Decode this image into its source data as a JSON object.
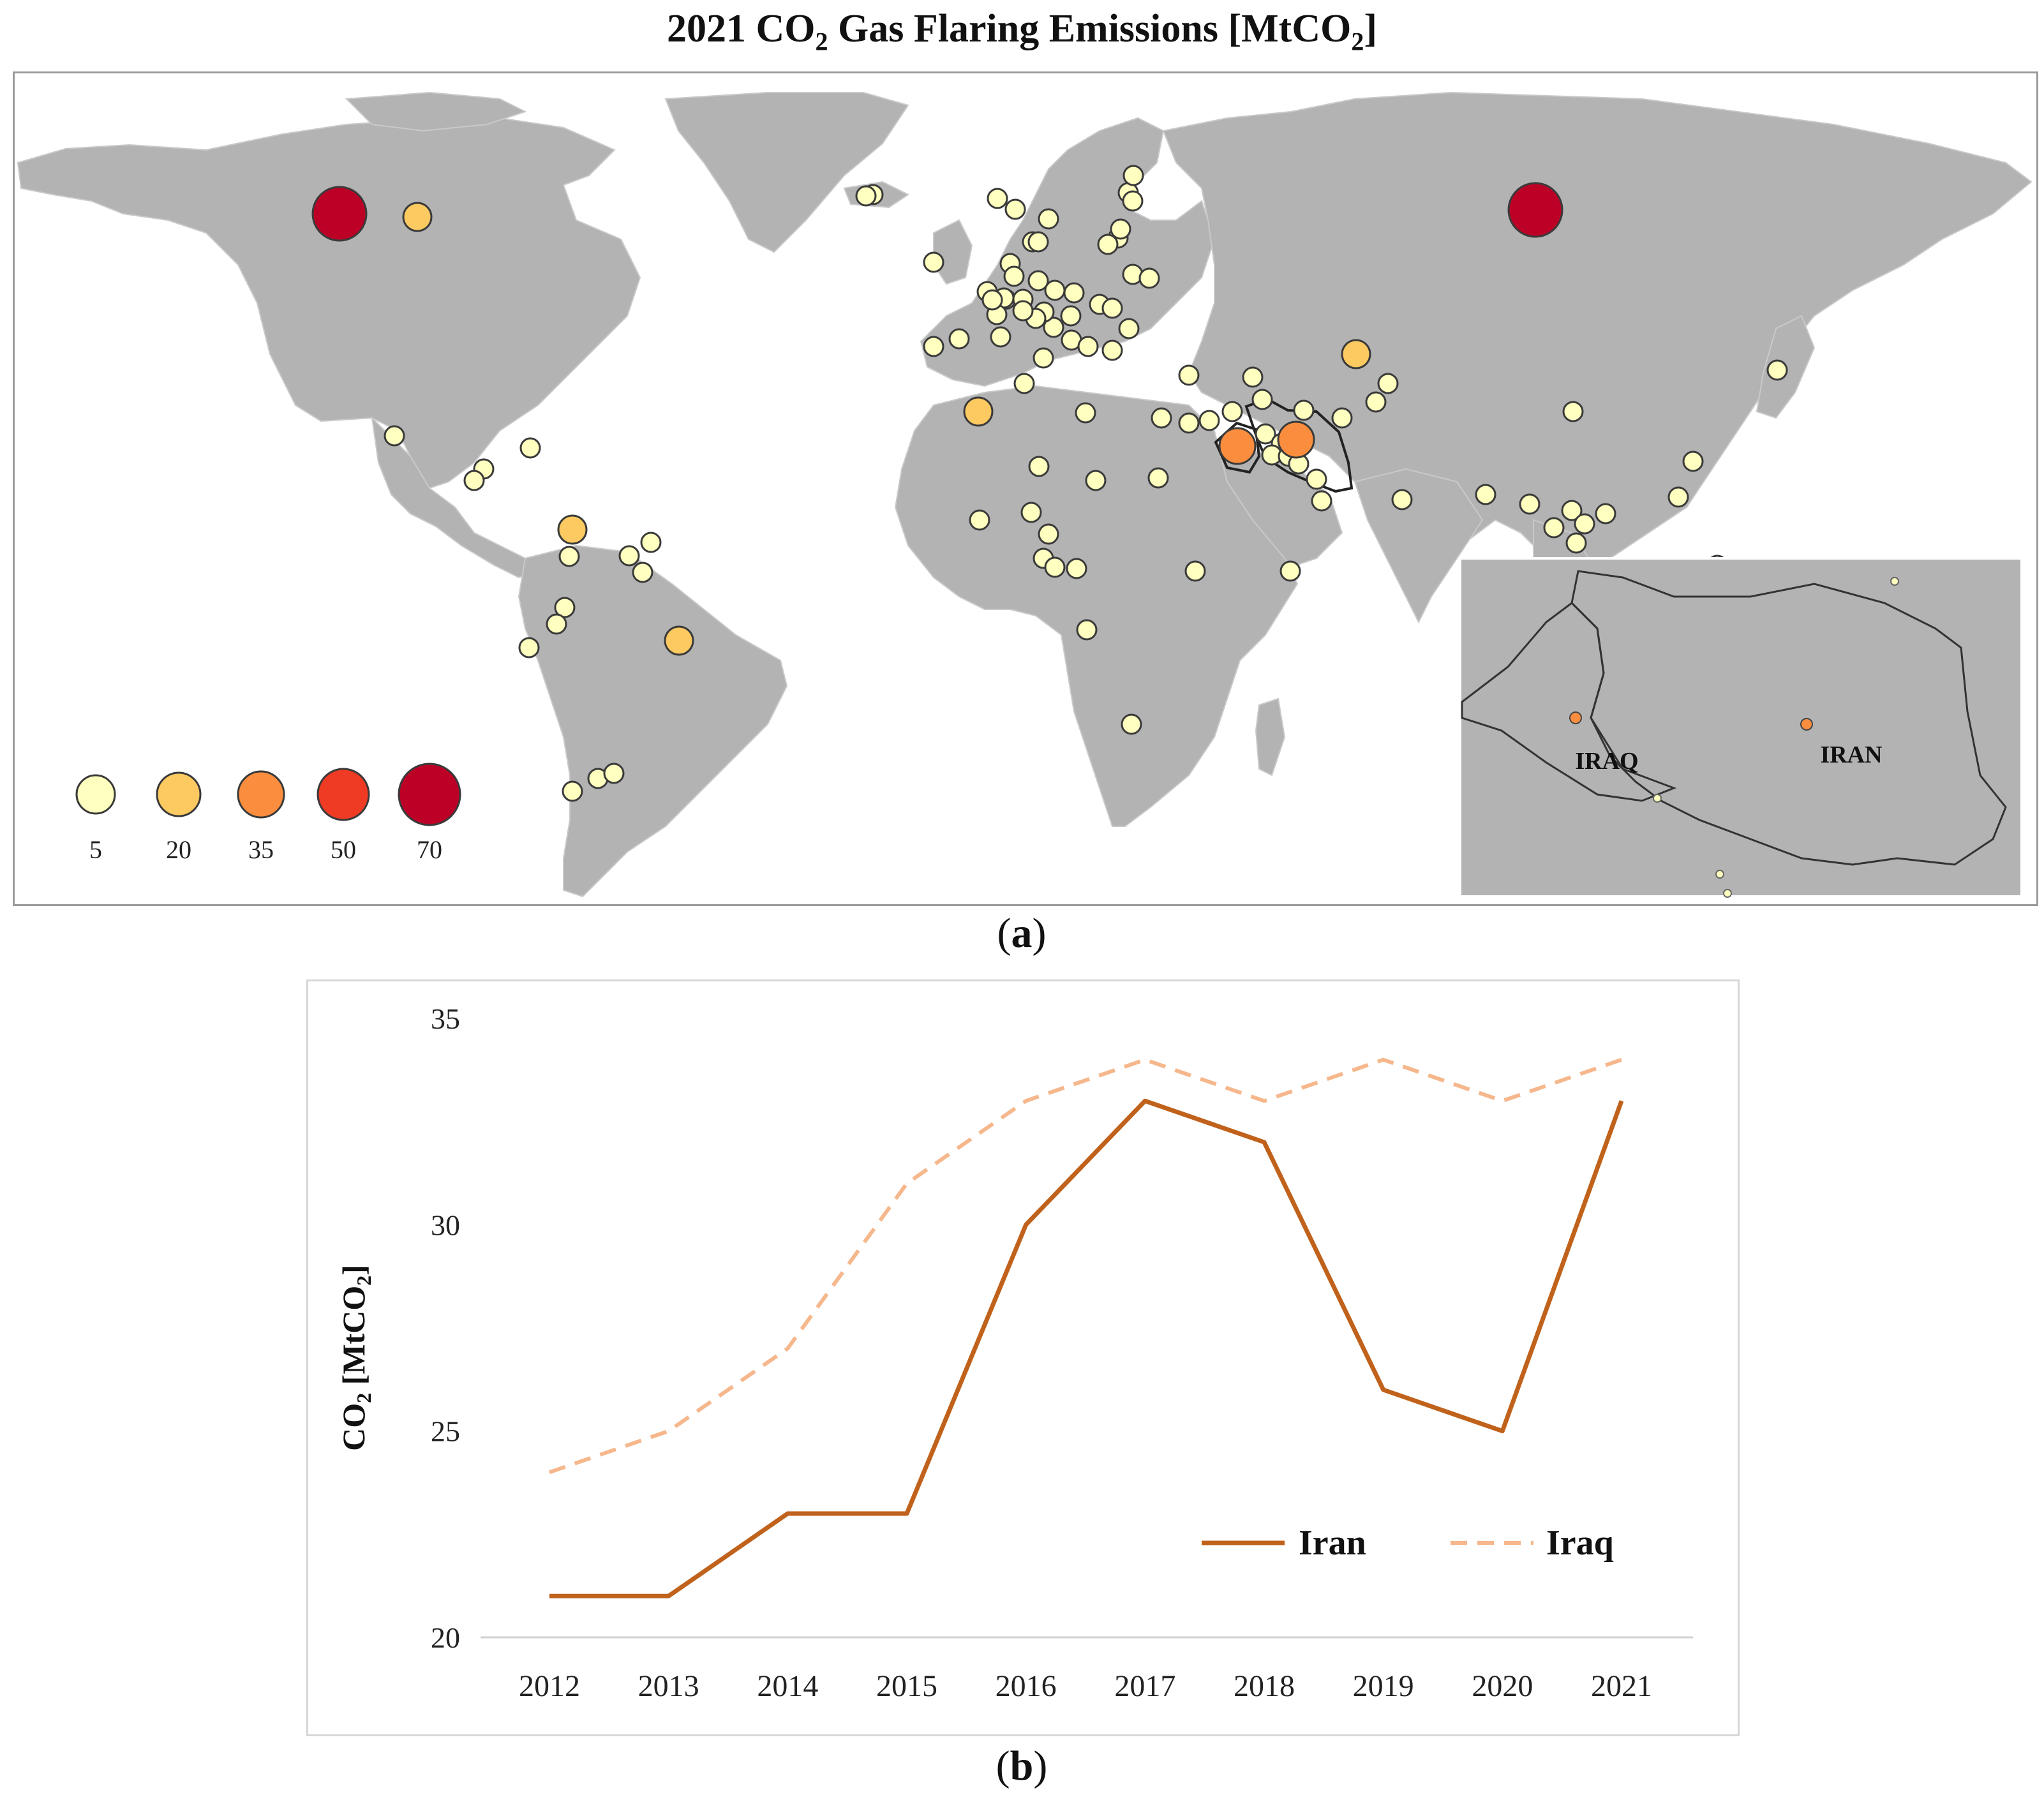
{
  "figure": {
    "title_main": "2021 CO",
    "title_sub": "2",
    "title_rest": " Gas Flaring Emissions [MtCO",
    "title_sub2": "2",
    "title_end": "]"
  },
  "panel_a": {
    "label_open": "(",
    "label_letter": "a",
    "label_close": ")"
  },
  "panel_b": {
    "label_open": "(",
    "label_letter": "b",
    "label_close": ")"
  },
  "map": {
    "legend": {
      "values": [
        "5",
        "20",
        "35",
        "50",
        "70"
      ],
      "colors": [
        "#ffffbf",
        "#fdc961",
        "#fb8e3e",
        "#ef3b23",
        "#bd0026"
      ]
    },
    "inset_labels": {
      "iraq": "IRAQ",
      "iran": "IRAN"
    },
    "land_color": "#b3b3b3",
    "border_color": "#c8c8c8"
  },
  "chart_data": {
    "type": "line",
    "categories": [
      "2012",
      "2013",
      "2014",
      "2015",
      "2016",
      "2017",
      "2018",
      "2019",
      "2020",
      "2021"
    ],
    "series": [
      {
        "name": "Iran",
        "values": [
          21,
          21,
          23,
          23,
          30,
          33,
          32,
          26,
          25,
          33
        ],
        "color": "#c0621b",
        "style": "solid"
      },
      {
        "name": "Iraq",
        "values": [
          24,
          25,
          27,
          31,
          33,
          34,
          33,
          34,
          33,
          34
        ],
        "color": "#f5b78b",
        "style": "dashed"
      }
    ],
    "ylim": [
      20,
      35
    ],
    "yticks": [
      "20",
      "25",
      "30",
      "35"
    ],
    "ylabel_main": "CO",
    "ylabel_sub": "2",
    "ylabel_rest": " [MtCO",
    "ylabel_sub2": "2",
    "ylabel_end": "]",
    "xlabel": "",
    "legend_position": "lower-right"
  }
}
